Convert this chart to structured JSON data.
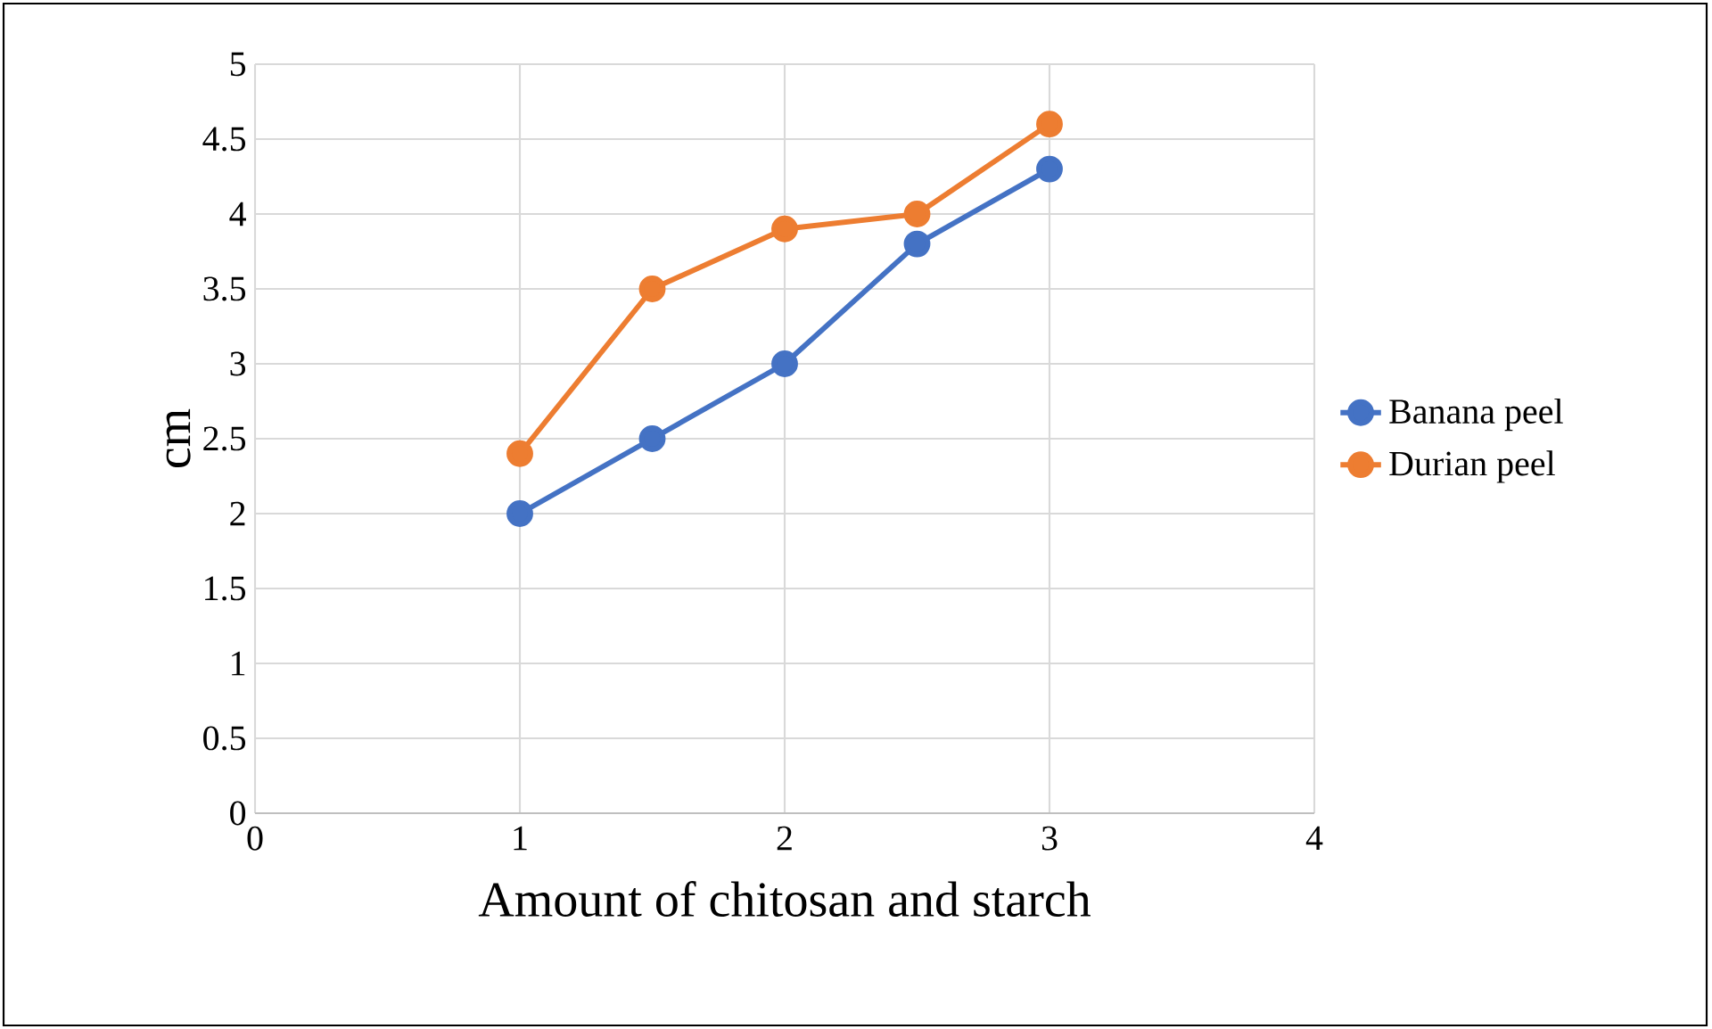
{
  "chart_data": {
    "type": "line",
    "xlabel": "Amount of chitosan and starch",
    "ylabel": "cm",
    "x": [
      1,
      1.5,
      2,
      2.5,
      3
    ],
    "series": [
      {
        "name": "Banana peel",
        "color": "#4472c4",
        "values": [
          2,
          2.5,
          3,
          3.8,
          4.3
        ]
      },
      {
        "name": "Durian peel",
        "color": "#ed7d31",
        "values": [
          2.4,
          3.5,
          3.9,
          4.0,
          4.6
        ]
      }
    ],
    "xlim": [
      0,
      4
    ],
    "ylim": [
      0,
      5
    ],
    "xticks": [
      0,
      1,
      2,
      3,
      4
    ],
    "yticks": [
      0,
      0.5,
      1,
      1.5,
      2,
      2.5,
      3,
      3.5,
      4,
      4.5,
      5
    ],
    "grid": true,
    "legend": "right",
    "marker": "circle"
  }
}
